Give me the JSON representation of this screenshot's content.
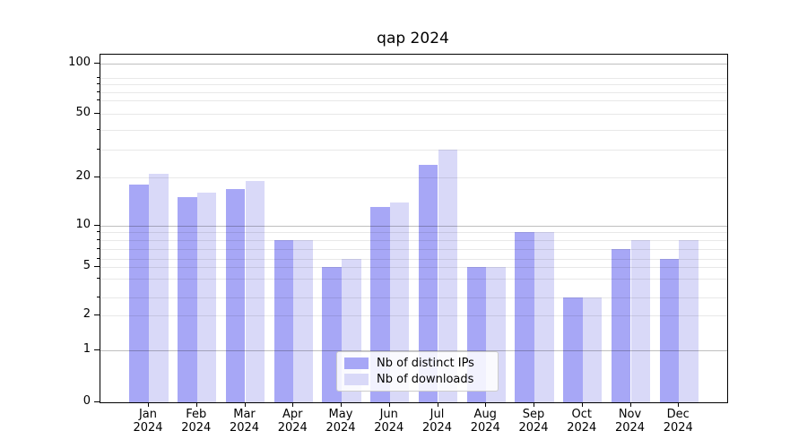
{
  "title": "qap 2024",
  "chart_data": {
    "type": "bar",
    "categories": [
      "Jan 2024",
      "Feb 2024",
      "Mar 2024",
      "Apr 2024",
      "May 2024",
      "Jun 2024",
      "Jul 2024",
      "Aug 2024",
      "Sep 2024",
      "Oct 2024",
      "Nov 2024",
      "Dec 2024"
    ],
    "series": [
      {
        "name": "Nb of distinct IPs",
        "color": "#a7a7f6",
        "values": [
          18,
          15,
          17,
          8,
          5,
          13,
          24,
          5,
          9,
          3,
          7,
          6
        ]
      },
      {
        "name": "Nb of downloads",
        "color": "#d9d9f8",
        "values": [
          21,
          16,
          19,
          8,
          6,
          14,
          30,
          5,
          9,
          3,
          8,
          8
        ]
      }
    ],
    "title": "qap 2024",
    "xlabel": "",
    "ylabel": "",
    "yscale": "symlog-like",
    "ylim": [
      0,
      110
    ],
    "y_major_ticks": [
      0,
      1,
      2,
      5,
      10,
      20,
      50,
      100
    ],
    "y_minor_ticks": [
      3,
      4,
      6,
      7,
      8,
      9,
      30,
      40,
      60,
      70,
      80,
      90
    ],
    "grid": true,
    "legend_position": "lower center"
  },
  "y_axis": {
    "tick_labels": [
      "0",
      "1",
      "2",
      "5",
      "10",
      "20",
      "50",
      "100"
    ]
  },
  "x_axis": {
    "tick_labels": [
      {
        "line1": "Jan",
        "line2": "2024"
      },
      {
        "line1": "Feb",
        "line2": "2024"
      },
      {
        "line1": "Mar",
        "line2": "2024"
      },
      {
        "line1": "Apr",
        "line2": "2024"
      },
      {
        "line1": "May",
        "line2": "2024"
      },
      {
        "line1": "Jun",
        "line2": "2024"
      },
      {
        "line1": "Jul",
        "line2": "2024"
      },
      {
        "line1": "Aug",
        "line2": "2024"
      },
      {
        "line1": "Sep",
        "line2": "2024"
      },
      {
        "line1": "Oct",
        "line2": "2024"
      },
      {
        "line1": "Nov",
        "line2": "2024"
      },
      {
        "line1": "Dec",
        "line2": "2024"
      }
    ]
  },
  "legend": {
    "items": [
      {
        "label": "Nb of distinct IPs",
        "color": "#a7a7f6"
      },
      {
        "label": "Nb of downloads",
        "color": "#d9d9f8"
      }
    ]
  }
}
